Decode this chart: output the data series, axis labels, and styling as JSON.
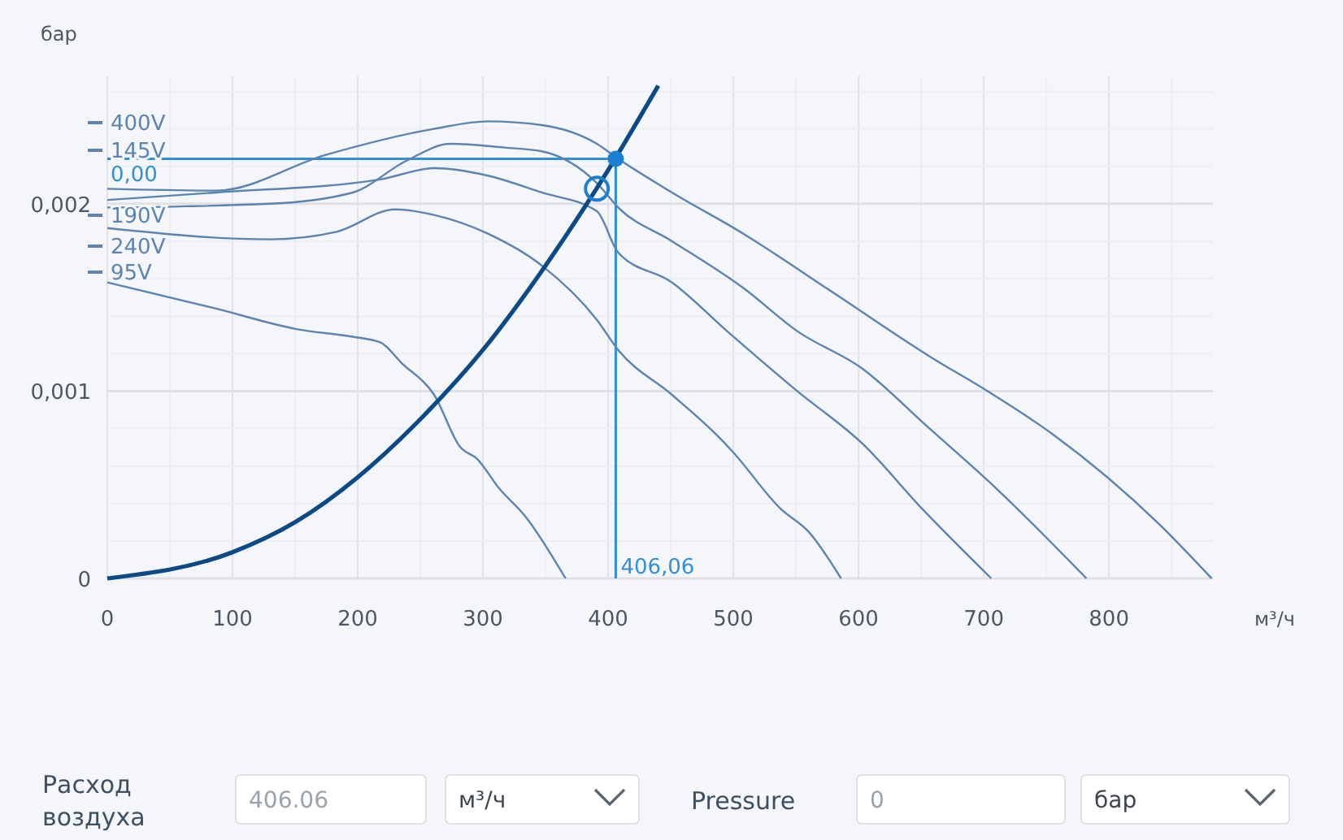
{
  "chart_data": {
    "type": "line",
    "xlabel": "м³/ч",
    "ylabel": "бар",
    "xlim": [
      0,
      883
    ],
    "ylim": [
      0,
      0.00268
    ],
    "xticks": [
      0,
      {
        "value": 50,
        "label": null
      },
      100,
      {
        "value": 150,
        "label": null
      },
      200,
      {
        "value": 250,
        "label": null
      },
      300,
      {
        "value": 350,
        "label": null
      },
      400,
      {
        "value": 450,
        "label": null
      },
      500,
      {
        "value": 550,
        "label": null
      },
      600,
      {
        "value": 650,
        "label": null
      },
      700,
      {
        "value": 750,
        "label": null
      },
      800,
      {
        "value": 850,
        "label": null
      }
    ],
    "yticks": [
      0,
      {
        "value": 0.0002,
        "label": null
      },
      {
        "value": 0.0004,
        "label": null
      },
      {
        "value": 0.0006,
        "label": null
      },
      {
        "value": 0.0008,
        "label": null
      },
      {
        "value": 0.001,
        "label": "0,001"
      },
      {
        "value": 0.0012,
        "label": null
      },
      {
        "value": 0.0014,
        "label": null
      },
      {
        "value": 0.0016,
        "label": null
      },
      {
        "value": 0.0018,
        "label": null
      },
      {
        "value": 0.002,
        "label": "0,002"
      },
      {
        "value": 0.0022,
        "label": null
      },
      {
        "value": 0.0024,
        "label": null
      },
      {
        "value": 0.0026,
        "label": null
      }
    ],
    "grid": true,
    "legend": "top left",
    "line_style": "solid",
    "marker": "none",
    "series": [
      {
        "name": "400V",
        "color": "#5b84b1",
        "x": [
          0,
          87,
          174,
          261,
          304,
          347,
          391,
          408,
          451,
          508,
          581,
          658,
          703,
          755,
          840,
          882
        ],
        "values": [
          0.00208,
          0.00207,
          0.00226,
          0.0024,
          0.00244,
          0.00242,
          0.00232,
          0.00224,
          0.00206,
          0.00184,
          0.00152,
          0.00118,
          0.001,
          0.00077,
          0.00029,
          0
        ]
      },
      {
        "name": "145V",
        "color": "#5b84b1",
        "x": [
          0,
          87,
          218,
          261,
          304,
          347,
          391,
          408,
          451,
          495,
          551,
          603,
          651,
          706
        ],
        "values": [
          0.00202,
          0.00206,
          0.00213,
          0.00219,
          0.00215,
          0.00206,
          0.00196,
          0.00174,
          0.00158,
          0.00132,
          0.001,
          0.00072,
          0.00037,
          0
        ]
      },
      {
        "name": "190V",
        "color": "#5b84b1",
        "x": [
          0,
          130,
          196,
          239,
          274,
          317,
          347,
          391,
          408,
          451,
          508,
          551,
          603,
          655,
          710,
          782
        ],
        "values": [
          0.00198,
          0.002,
          0.00206,
          0.00223,
          0.00232,
          0.0023,
          0.00228,
          0.00211,
          0.00198,
          0.0018,
          0.00155,
          0.00132,
          0.00112,
          0.00081,
          0.00048,
          0
        ]
      },
      {
        "name": "240V",
        "color": "#5b84b1",
        "x": [
          0,
          130,
          183,
          230,
          261,
          304,
          347,
          391,
          408,
          451,
          486,
          499,
          538,
          560,
          586
        ],
        "values": [
          0.00187,
          0.00181,
          0.00185,
          0.00197,
          0.00194,
          0.00184,
          0.00167,
          0.00138,
          0.00122,
          0.00098,
          0.00077,
          0.00068,
          0.00037,
          0.00025,
          0
        ]
      },
      {
        "name": "95V",
        "color": "#5b84b1",
        "x": [
          0,
          87,
          152,
          196,
          218,
          235,
          261,
          282,
          295,
          313,
          334,
          366
        ],
        "values": [
          0.00158,
          0.00144,
          0.00133,
          0.00129,
          0.00126,
          0.00115,
          0.00098,
          0.0007,
          0.00064,
          0.00048,
          0.00033,
          0
        ]
      },
      {
        "type": "line",
        "color": "#0b4a86",
        "x": [
          0,
          100,
          150,
          200,
          250,
          300,
          350,
          400,
          440
        ],
        "values": [
          0,
          0.00014,
          0.0003,
          0.00054,
          0.00085,
          0.00122,
          0.00167,
          0.00218,
          0.00263
        ]
      },
      {
        "type": "scatter",
        "marker": "circle",
        "color": "#1a7fd0",
        "x": [
          406.06
        ],
        "values": [
          0.00224
        ]
      },
      {
        "type": "scatter",
        "marker": "circle",
        "color": "#1a7fd0",
        "x": [
          391
        ],
        "values": [
          0.00208
        ]
      }
    ],
    "ref_lines": [
      {
        "axis": "y",
        "value": 0.00224,
        "label": "0,00",
        "color": "#2f8fd8"
      },
      {
        "axis": "x",
        "value": 406.06,
        "label": "406,06",
        "color": "#2f8fd8"
      }
    ],
    "annotations": [
      "Расход воздуха",
      "406.06",
      "м³/ч",
      "Pressure",
      "0",
      "бар"
    ]
  }
}
